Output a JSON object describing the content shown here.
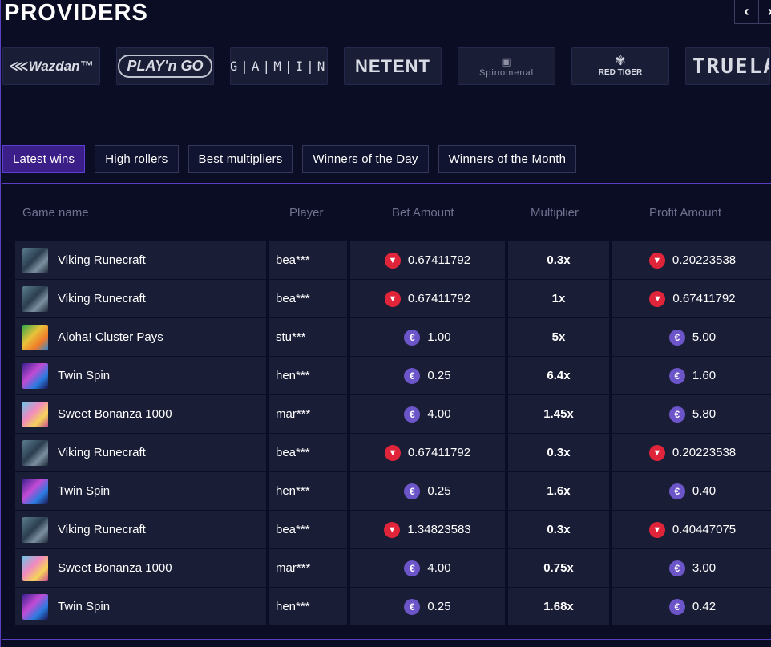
{
  "header": {
    "title": "PROVIDERS",
    "prev_arrow": "‹",
    "next_arrow": "›"
  },
  "providers": [
    {
      "name": "Wazdan",
      "label": "⋘Wazdan™"
    },
    {
      "name": "Play'n GO",
      "label": "PLAY'n GO"
    },
    {
      "name": "BGaming",
      "label": "B|G|A|M|I|N|G"
    },
    {
      "name": "NetEnt",
      "label": "NETENT"
    },
    {
      "name": "Spinomenal",
      "label": "Spinomenal"
    },
    {
      "name": "Red Tiger",
      "label": "RED TIGER"
    },
    {
      "name": "TrueLab",
      "label": "TRUELAB"
    }
  ],
  "tabs": [
    {
      "label": "Latest wins",
      "active": true
    },
    {
      "label": "High rollers",
      "active": false
    },
    {
      "label": "Best multipliers",
      "active": false
    },
    {
      "label": "Winners of the Day",
      "active": false
    },
    {
      "label": "Winners of the Month",
      "active": false
    }
  ],
  "table": {
    "headers": {
      "game": "Game name",
      "player": "Player",
      "bet": "Bet Amount",
      "multiplier": "Multiplier",
      "profit": "Profit Amount"
    },
    "rows": [
      {
        "game": "Viking Runecraft",
        "thumb": "viking",
        "player": "bea***",
        "bet": "0.67411792",
        "currency": "trx",
        "multiplier": "0.3x",
        "profit": "0.20223538"
      },
      {
        "game": "Viking Runecraft",
        "thumb": "viking",
        "player": "bea***",
        "bet": "0.67411792",
        "currency": "trx",
        "multiplier": "1x",
        "profit": "0.67411792"
      },
      {
        "game": "Aloha! Cluster Pays",
        "thumb": "aloha",
        "player": "stu***",
        "bet": "1.00",
        "currency": "eur",
        "multiplier": "5x",
        "profit": "5.00"
      },
      {
        "game": "Twin Spin",
        "thumb": "twin",
        "player": "hen***",
        "bet": "0.25",
        "currency": "eur",
        "multiplier": "6.4x",
        "profit": "1.60"
      },
      {
        "game": "Sweet Bonanza 1000",
        "thumb": "bonanza",
        "player": "mar***",
        "bet": "4.00",
        "currency": "eur",
        "multiplier": "1.45x",
        "profit": "5.80"
      },
      {
        "game": "Viking Runecraft",
        "thumb": "viking",
        "player": "bea***",
        "bet": "0.67411792",
        "currency": "trx",
        "multiplier": "0.3x",
        "profit": "0.20223538"
      },
      {
        "game": "Twin Spin",
        "thumb": "twin",
        "player": "hen***",
        "bet": "0.25",
        "currency": "eur",
        "multiplier": "1.6x",
        "profit": "0.40"
      },
      {
        "game": "Viking Runecraft",
        "thumb": "viking",
        "player": "bea***",
        "bet": "1.34823583",
        "currency": "trx",
        "multiplier": "0.3x",
        "profit": "0.40447075"
      },
      {
        "game": "Sweet Bonanza 1000",
        "thumb": "bonanza",
        "player": "mar***",
        "bet": "4.00",
        "currency": "eur",
        "multiplier": "0.75x",
        "profit": "3.00"
      },
      {
        "game": "Twin Spin",
        "thumb": "twin",
        "player": "hen***",
        "bet": "0.25",
        "currency": "eur",
        "multiplier": "1.68x",
        "profit": "0.42"
      }
    ]
  },
  "icons": {
    "trx": "tron-coin-icon",
    "eur": "euro-coin-icon"
  },
  "colors": {
    "background": "#0b0d24",
    "row": "#1a1d36",
    "tab_active": "#3b1e88",
    "accent_border": "#5a3fc0",
    "trx": "#e0243a",
    "eur": "#6b55c8"
  }
}
